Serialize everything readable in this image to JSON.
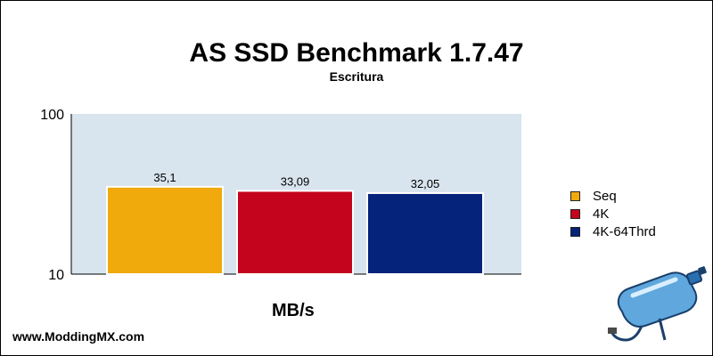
{
  "footer": {
    "site": "www.ModdingMX.com"
  },
  "legend": [
    {
      "label": "Seq",
      "color": "#f0aa0c"
    },
    {
      "label": "4K",
      "color": "#c4031d"
    },
    {
      "label": "4K-64Thrd",
      "color": "#05237a"
    }
  ],
  "mascot": {
    "icon": "ssd-bottle-mascot-icon"
  },
  "chart_data": {
    "type": "bar",
    "title": "AS SSD Benchmark 1.7.47",
    "subtitle": "Escritura",
    "xlabel": "MB/s",
    "ylabel": "",
    "yscale": "log",
    "ylim": [
      10,
      100
    ],
    "yticks": [
      "100",
      "10"
    ],
    "grid": false,
    "legend_position": "right",
    "plot_background": "#d8e4ee",
    "series": [
      {
        "name": "Seq",
        "value": 35.1,
        "label": "35,1",
        "color": "#f0aa0c"
      },
      {
        "name": "4K",
        "value": 33.09,
        "label": "33,09",
        "color": "#c4031d"
      },
      {
        "name": "4K-64Thrd",
        "value": 32.05,
        "label": "32,05",
        "color": "#05237a"
      }
    ]
  }
}
